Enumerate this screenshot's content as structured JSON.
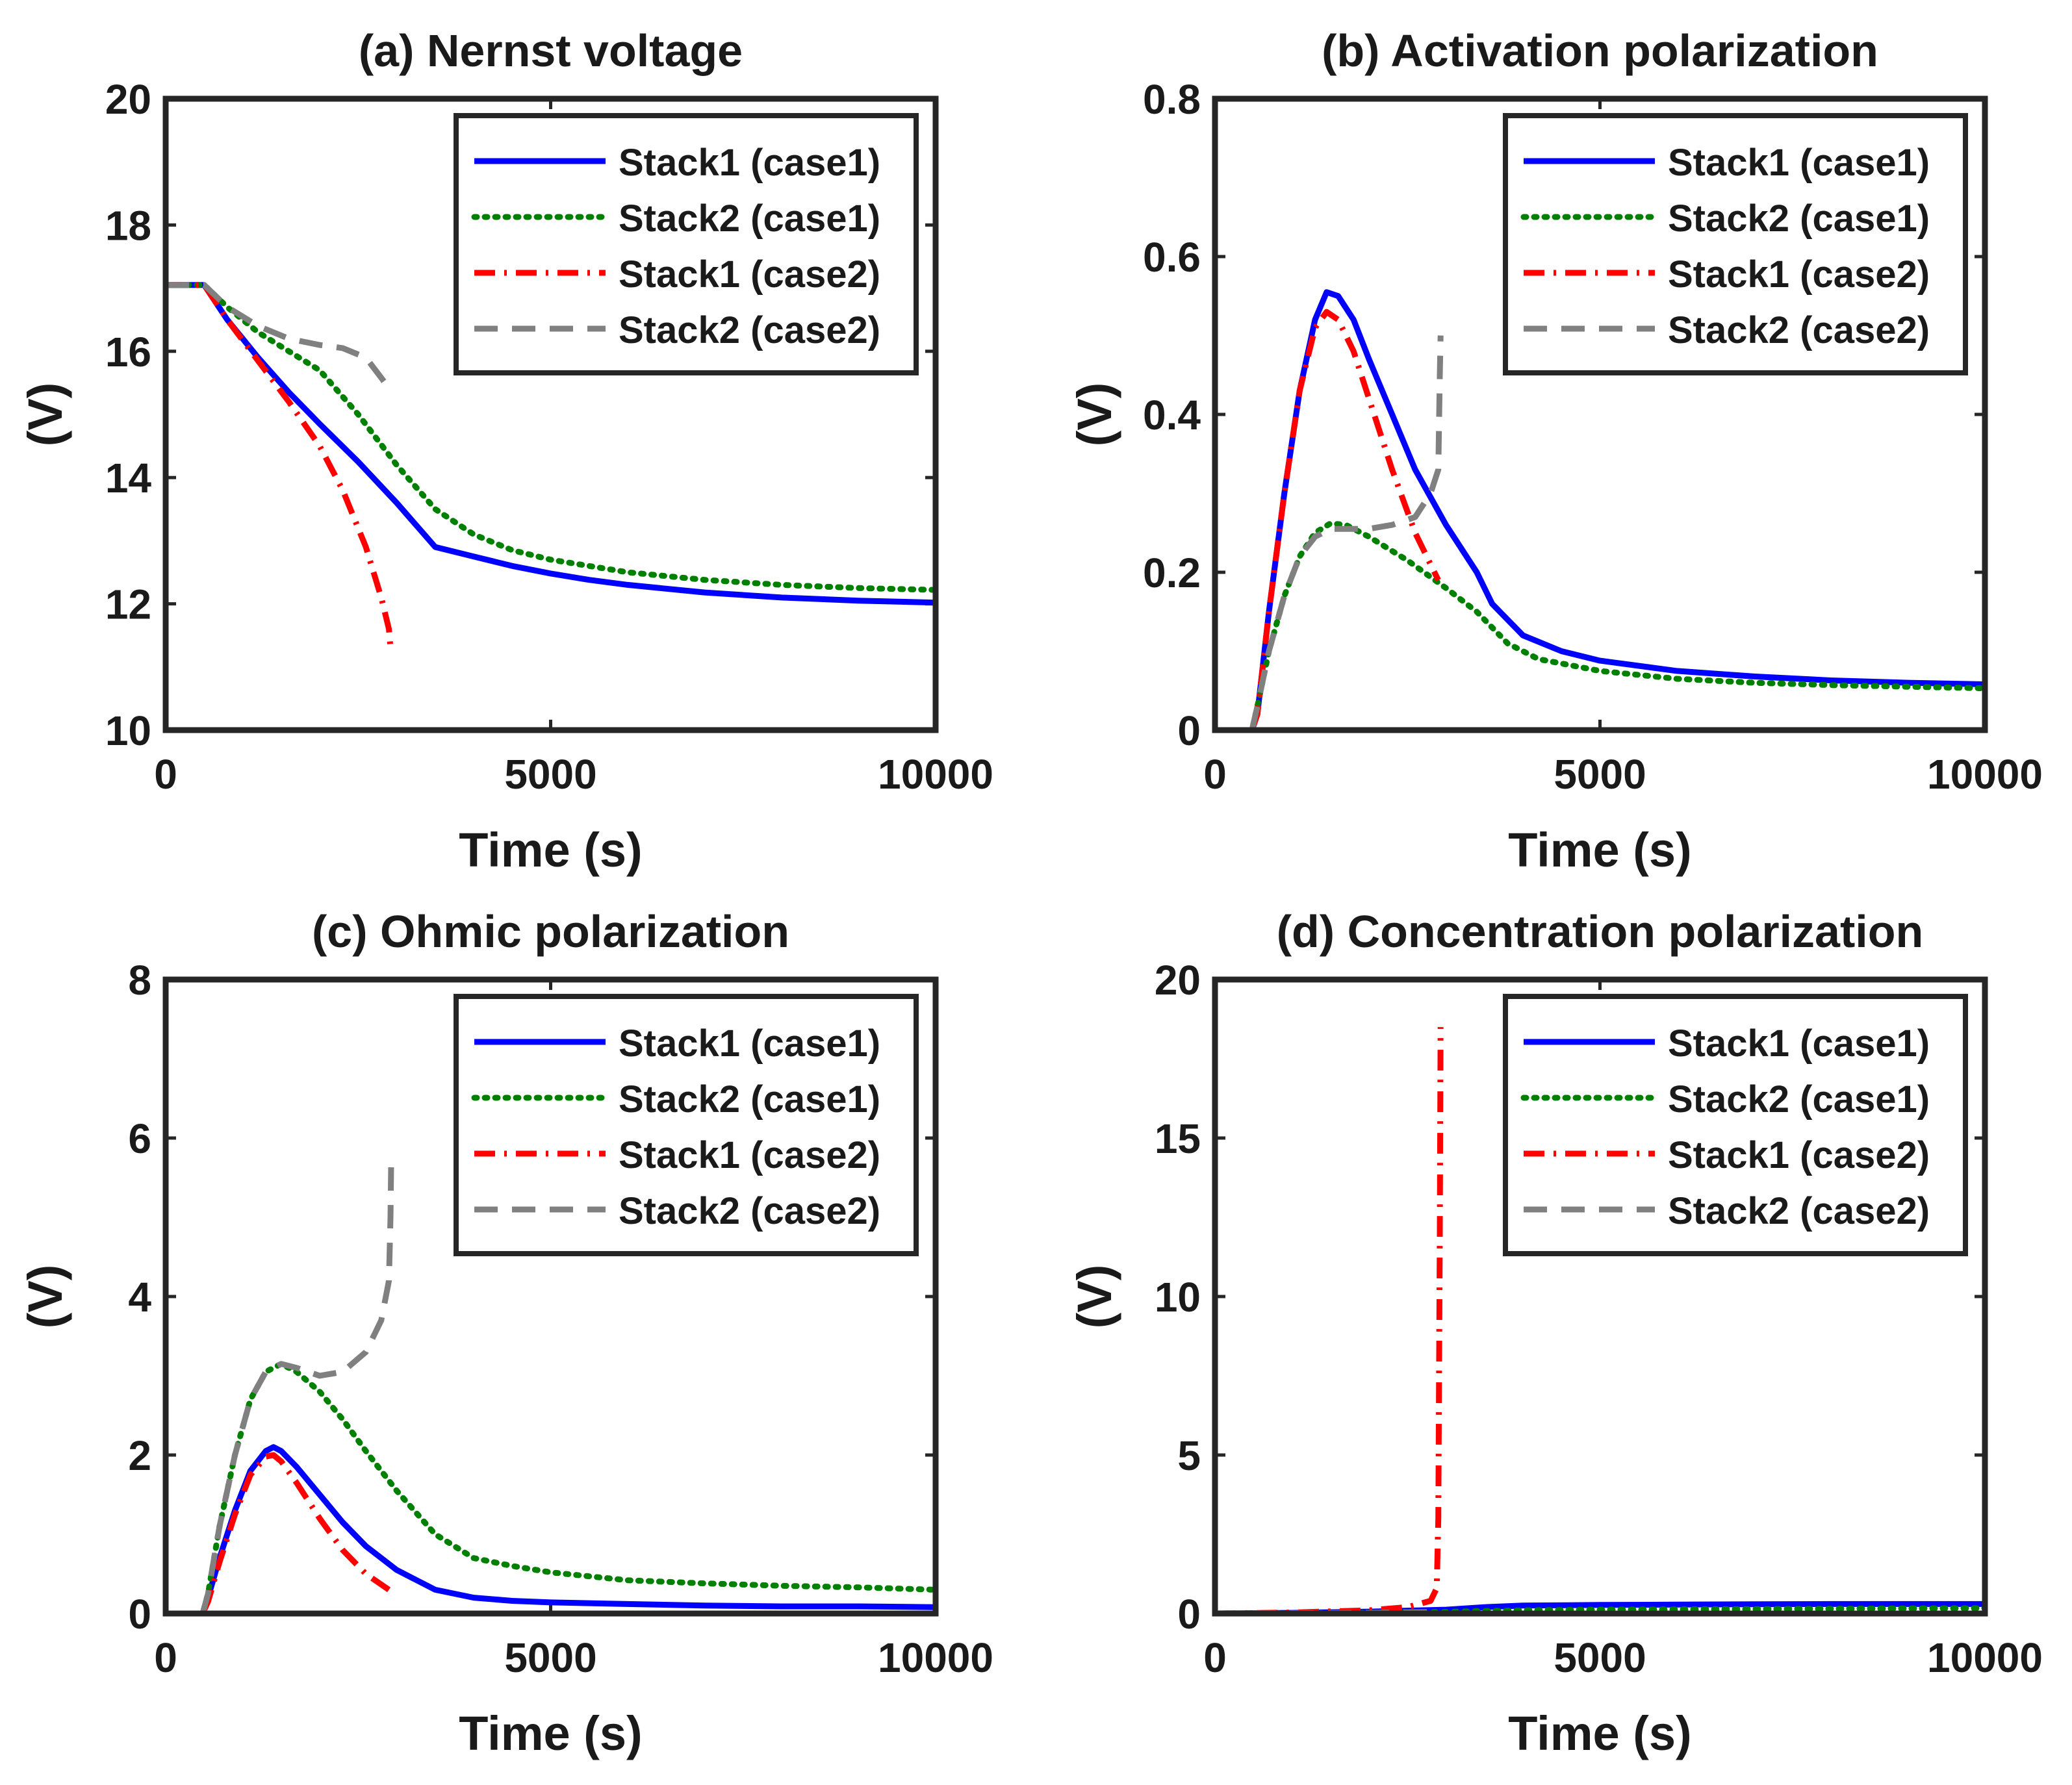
{
  "colors": {
    "stack1_case1": "#0000ff",
    "stack2_case1": "#008000",
    "stack1_case2": "#ff0000",
    "stack2_case2": "#808080",
    "axes": "#262626"
  },
  "series_styles": {
    "stack1_case1": "solid",
    "stack2_case1": "dotted",
    "stack1_case2": "dashdot",
    "stack2_case2": "dashed"
  },
  "chart_data": [
    {
      "type": "line",
      "title": "(a) Nernst voltage",
      "xlabel": "Time (s)",
      "ylabel": "(V)",
      "xlim": [
        0,
        10000
      ],
      "ylim": [
        10,
        20
      ],
      "xticks": [
        0,
        5000,
        10000
      ],
      "yticks": [
        10,
        12,
        14,
        16,
        18,
        20
      ],
      "legend_position": "top-right",
      "series": [
        {
          "name": "Stack1 (case1)",
          "key": "stack1_case1",
          "x": [
            0,
            500,
            800,
            1200,
            1600,
            2000,
            2500,
            3000,
            3500,
            4000,
            4500,
            5000,
            5500,
            6000,
            7000,
            8000,
            9000,
            10000
          ],
          "y": [
            17.05,
            17.05,
            16.5,
            15.9,
            15.35,
            14.85,
            14.25,
            13.6,
            12.9,
            12.75,
            12.6,
            12.48,
            12.38,
            12.3,
            12.18,
            12.1,
            12.05,
            12.02
          ]
        },
        {
          "name": "Stack2 (case1)",
          "key": "stack2_case1",
          "x": [
            0,
            500,
            800,
            1200,
            1600,
            2000,
            2500,
            3000,
            3500,
            4000,
            4500,
            5000,
            5500,
            6000,
            7000,
            8000,
            9000,
            10000
          ],
          "y": [
            17.05,
            17.05,
            16.7,
            16.3,
            16.0,
            15.7,
            15.0,
            14.2,
            13.5,
            13.1,
            12.85,
            12.7,
            12.6,
            12.5,
            12.38,
            12.3,
            12.25,
            12.22
          ]
        },
        {
          "name": "Stack1 (case2)",
          "key": "stack1_case2",
          "x": [
            0,
            500,
            800,
            1200,
            1600,
            2000,
            2300,
            2600,
            2800,
            2900,
            2920
          ],
          "y": [
            17.05,
            17.05,
            16.5,
            15.85,
            15.2,
            14.5,
            13.8,
            12.9,
            12.1,
            11.6,
            11.3
          ]
        },
        {
          "name": "Stack2 (case2)",
          "key": "stack2_case2",
          "x": [
            0,
            500,
            800,
            1200,
            1600,
            2000,
            2300,
            2600,
            2850
          ],
          "y": [
            17.05,
            17.05,
            16.7,
            16.4,
            16.2,
            16.1,
            16.05,
            15.9,
            15.5
          ]
        }
      ]
    },
    {
      "type": "line",
      "title": "(b) Activation polarization",
      "xlabel": "Time (s)",
      "ylabel": "(V)",
      "xlim": [
        0,
        10000
      ],
      "ylim": [
        0,
        0.8
      ],
      "xticks": [
        0,
        5000,
        10000
      ],
      "yticks": [
        0,
        0.2,
        0.4,
        0.6,
        0.8
      ],
      "legend_position": "top-right",
      "series": [
        {
          "name": "Stack1 (case1)",
          "key": "stack1_case1",
          "x": [
            0,
            480,
            550,
            700,
            900,
            1100,
            1300,
            1450,
            1600,
            1800,
            2000,
            2300,
            2600,
            3000,
            3400,
            3600,
            4000,
            4500,
            5000,
            6000,
            7000,
            8000,
            9000,
            10000
          ],
          "y": [
            0,
            0,
            0.02,
            0.15,
            0.3,
            0.43,
            0.52,
            0.555,
            0.55,
            0.52,
            0.47,
            0.4,
            0.33,
            0.26,
            0.2,
            0.16,
            0.12,
            0.1,
            0.088,
            0.075,
            0.068,
            0.063,
            0.06,
            0.058
          ]
        },
        {
          "name": "Stack2 (case1)",
          "key": "stack2_case1",
          "x": [
            0,
            480,
            550,
            700,
            900,
            1100,
            1300,
            1500,
            1700,
            2000,
            2500,
            3000,
            3400,
            3800,
            4200,
            5000,
            6000,
            7000,
            8000,
            9000,
            10000
          ],
          "y": [
            0,
            0,
            0.03,
            0.1,
            0.17,
            0.22,
            0.25,
            0.262,
            0.26,
            0.245,
            0.215,
            0.18,
            0.15,
            0.11,
            0.09,
            0.075,
            0.065,
            0.06,
            0.057,
            0.055,
            0.053
          ]
        },
        {
          "name": "Stack1 (case2)",
          "key": "stack1_case2",
          "x": [
            0,
            480,
            550,
            700,
            900,
            1100,
            1300,
            1450,
            1600,
            1800,
            2000,
            2300,
            2600,
            2800,
            2900
          ],
          "y": [
            0,
            0,
            0.02,
            0.15,
            0.3,
            0.43,
            0.51,
            0.53,
            0.52,
            0.48,
            0.42,
            0.33,
            0.25,
            0.21,
            0.19
          ]
        },
        {
          "name": "Stack2 (case2)",
          "key": "stack2_case2",
          "x": [
            0,
            480,
            550,
            700,
            900,
            1100,
            1300,
            1500,
            1700,
            2000,
            2300,
            2600,
            2800,
            2900,
            2920,
            2930
          ],
          "y": [
            0,
            0,
            0.03,
            0.1,
            0.17,
            0.22,
            0.245,
            0.255,
            0.255,
            0.255,
            0.26,
            0.27,
            0.3,
            0.33,
            0.45,
            0.5
          ]
        }
      ]
    },
    {
      "type": "line",
      "title": "(c) Ohmic polarization",
      "xlabel": "Time (s)",
      "ylabel": "(V)",
      "xlim": [
        0,
        10000
      ],
      "ylim": [
        0,
        8
      ],
      "xticks": [
        0,
        5000,
        10000
      ],
      "yticks": [
        0,
        2,
        4,
        6,
        8
      ],
      "legend_position": "top-right",
      "series": [
        {
          "name": "Stack1 (case1)",
          "key": "stack1_case1",
          "x": [
            0,
            480,
            550,
            700,
            900,
            1100,
            1300,
            1400,
            1500,
            1700,
            2000,
            2300,
            2600,
            3000,
            3500,
            4000,
            4500,
            5000,
            6000,
            7000,
            8000,
            9000,
            10000
          ],
          "y": [
            0,
            0,
            0.2,
            0.7,
            1.3,
            1.8,
            2.05,
            2.1,
            2.05,
            1.85,
            1.5,
            1.15,
            0.85,
            0.55,
            0.3,
            0.2,
            0.16,
            0.14,
            0.12,
            0.1,
            0.09,
            0.09,
            0.08
          ]
        },
        {
          "name": "Stack2 (case1)",
          "key": "stack2_case1",
          "x": [
            0,
            480,
            550,
            700,
            900,
            1100,
            1300,
            1500,
            1700,
            2000,
            2300,
            2600,
            3000,
            3500,
            4000,
            4500,
            5000,
            6000,
            7000,
            8000,
            9000,
            10000
          ],
          "y": [
            0,
            0,
            0.25,
            1.1,
            2.0,
            2.7,
            3.05,
            3.15,
            3.05,
            2.8,
            2.45,
            2.05,
            1.55,
            1.0,
            0.7,
            0.6,
            0.52,
            0.42,
            0.38,
            0.35,
            0.33,
            0.3
          ]
        },
        {
          "name": "Stack1 (case2)",
          "key": "stack1_case2",
          "x": [
            0,
            480,
            550,
            700,
            900,
            1100,
            1300,
            1400,
            1500,
            1700,
            2000,
            2300,
            2600,
            2900
          ],
          "y": [
            0,
            0,
            0.15,
            0.65,
            1.25,
            1.75,
            1.98,
            2.0,
            1.92,
            1.65,
            1.2,
            0.8,
            0.5,
            0.3
          ]
        },
        {
          "name": "Stack2 (case2)",
          "key": "stack2_case2",
          "x": [
            0,
            480,
            550,
            700,
            900,
            1100,
            1300,
            1500,
            1700,
            2000,
            2300,
            2600,
            2800,
            2900,
            2920,
            2930
          ],
          "y": [
            0,
            0,
            0.25,
            1.1,
            2.0,
            2.7,
            3.05,
            3.15,
            3.1,
            3.0,
            3.05,
            3.3,
            3.7,
            4.2,
            5.0,
            5.8
          ]
        }
      ]
    },
    {
      "type": "line",
      "title": "(d) Concentration polarization",
      "xlabel": "Time (s)",
      "ylabel": "(V)",
      "xlim": [
        0,
        10000
      ],
      "ylim": [
        0,
        20
      ],
      "xticks": [
        0,
        5000,
        10000
      ],
      "yticks": [
        0,
        5,
        10,
        15,
        20
      ],
      "legend_position": "top-right",
      "series": [
        {
          "name": "Stack1 (case1)",
          "key": "stack1_case1",
          "x": [
            0,
            1000,
            2000,
            3000,
            3500,
            4000,
            5000,
            6000,
            7000,
            8000,
            9000,
            10000
          ],
          "y": [
            0,
            0.02,
            0.06,
            0.12,
            0.2,
            0.25,
            0.27,
            0.28,
            0.29,
            0.3,
            0.3,
            0.3
          ]
        },
        {
          "name": "Stack2 (case1)",
          "key": "stack2_case1",
          "x": [
            0,
            1000,
            2000,
            3000,
            3500,
            4000,
            5000,
            6000,
            7000,
            8000,
            9000,
            10000
          ],
          "y": [
            0,
            0.01,
            0.02,
            0.05,
            0.08,
            0.1,
            0.12,
            0.13,
            0.14,
            0.15,
            0.16,
            0.17
          ]
        },
        {
          "name": "Stack1 (case2)",
          "key": "stack1_case2",
          "x": [
            0,
            1000,
            2000,
            2500,
            2800,
            2880,
            2900,
            2920,
            2930
          ],
          "y": [
            0,
            0.03,
            0.1,
            0.2,
            0.4,
            0.8,
            3.0,
            12.0,
            18.5
          ]
        },
        {
          "name": "Stack2 (case2)",
          "key": "stack2_case2",
          "x": [
            0,
            1000,
            2000,
            2900
          ],
          "y": [
            0,
            0.01,
            0.02,
            0.05
          ]
        }
      ]
    }
  ]
}
